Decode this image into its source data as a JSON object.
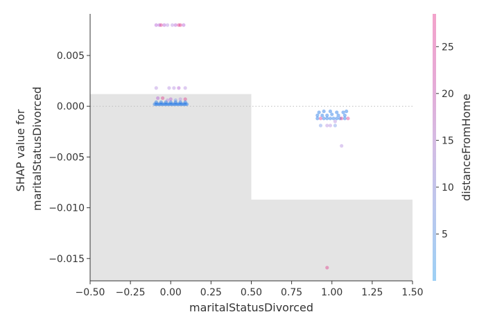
{
  "chart_data": {
    "type": "scatter",
    "xlabel": "maritalStatusDivorced",
    "ylabel_lines": [
      "SHAP value for",
      "maritalStatusDivorced"
    ],
    "xlim": [
      -0.5,
      1.5
    ],
    "ylim": [
      -0.0172,
      0.0091
    ],
    "x_ticks": [
      -0.5,
      -0.25,
      0.0,
      0.25,
      0.5,
      0.75,
      1.0,
      1.25,
      1.5
    ],
    "x_tick_labels": [
      "−0.50",
      "−0.25",
      "0.00",
      "0.25",
      "0.50",
      "0.75",
      "1.00",
      "1.25",
      "1.50"
    ],
    "y_ticks": [
      0.005,
      0.0,
      -0.005,
      -0.01,
      -0.015
    ],
    "y_tick_labels": [
      "0.005",
      "0.000",
      "−0.005",
      "−0.010",
      "−0.015"
    ],
    "zero_line": true,
    "histogram": {
      "color": "#e4e4e4",
      "bins": [
        {
          "x0": -0.5,
          "x1": 0.5,
          "top": 0.0012
        },
        {
          "x0": 0.5,
          "x1": 1.5,
          "top": -0.0092
        }
      ]
    },
    "colorbar": {
      "label": "distanceFromHome",
      "range": [
        0,
        28.5
      ],
      "ticks": [
        5,
        10,
        15,
        20,
        25
      ],
      "tick_labels": [
        "5",
        "10",
        "15",
        "20",
        "25"
      ],
      "colors": [
        "#9dd0f5",
        "#b9c8ee",
        "#d3bde4",
        "#e6aad6",
        "#f3a3cb"
      ]
    },
    "points": [
      {
        "x": -0.09,
        "y": 0.008,
        "c": 18
      },
      {
        "x": -0.07,
        "y": 0.008,
        "c": 18
      },
      {
        "x": -0.06,
        "y": 0.008,
        "c": 22
      },
      {
        "x": -0.04,
        "y": 0.008,
        "c": 18
      },
      {
        "x": -0.02,
        "y": 0.008,
        "c": 12
      },
      {
        "x": 0.01,
        "y": 0.008,
        "c": 14
      },
      {
        "x": 0.03,
        "y": 0.008,
        "c": 18
      },
      {
        "x": 0.05,
        "y": 0.008,
        "c": 22
      },
      {
        "x": 0.06,
        "y": 0.008,
        "c": 20
      },
      {
        "x": 0.08,
        "y": 0.008,
        "c": 16
      },
      {
        "x": -0.09,
        "y": 0.0018,
        "c": 14
      },
      {
        "x": -0.01,
        "y": 0.0018,
        "c": 14
      },
      {
        "x": 0.02,
        "y": 0.0018,
        "c": 12
      },
      {
        "x": 0.05,
        "y": 0.0018,
        "c": 16
      },
      {
        "x": 0.09,
        "y": 0.0018,
        "c": 14
      },
      {
        "x": -0.08,
        "y": 0.0008,
        "c": 16
      },
      {
        "x": -0.05,
        "y": 0.0008,
        "c": 22
      },
      {
        "x": -0.02,
        "y": 0.0006,
        "c": 10
      },
      {
        "x": 0.0,
        "y": 0.0007,
        "c": 18
      },
      {
        "x": 0.03,
        "y": 0.0006,
        "c": 8
      },
      {
        "x": 0.06,
        "y": 0.0007,
        "c": 12
      },
      {
        "x": 0.09,
        "y": 0.0007,
        "c": 20
      },
      {
        "x": -0.09,
        "y": 0.0004,
        "c": 3
      },
      {
        "x": -0.06,
        "y": 0.0004,
        "c": 3
      },
      {
        "x": -0.03,
        "y": 0.0004,
        "c": 4
      },
      {
        "x": 0.0,
        "y": 0.0004,
        "c": 3
      },
      {
        "x": 0.03,
        "y": 0.0004,
        "c": 3
      },
      {
        "x": 0.06,
        "y": 0.0004,
        "c": 4
      },
      {
        "x": 0.09,
        "y": 0.0004,
        "c": 3
      },
      {
        "x": -0.1,
        "y": 0.0002,
        "c": 2
      },
      {
        "x": -0.09,
        "y": 0.0002,
        "c": 2
      },
      {
        "x": -0.08,
        "y": 0.0002,
        "c": 2
      },
      {
        "x": -0.07,
        "y": 0.0002,
        "c": 2
      },
      {
        "x": -0.06,
        "y": 0.0002,
        "c": 2
      },
      {
        "x": -0.05,
        "y": 0.0002,
        "c": 2
      },
      {
        "x": -0.04,
        "y": 0.0002,
        "c": 2
      },
      {
        "x": -0.03,
        "y": 0.0002,
        "c": 2
      },
      {
        "x": -0.02,
        "y": 0.0002,
        "c": 2
      },
      {
        "x": -0.01,
        "y": 0.0002,
        "c": 2
      },
      {
        "x": 0.0,
        "y": 0.0002,
        "c": 2
      },
      {
        "x": 0.01,
        "y": 0.0002,
        "c": 2
      },
      {
        "x": 0.02,
        "y": 0.0002,
        "c": 2
      },
      {
        "x": 0.03,
        "y": 0.0002,
        "c": 2
      },
      {
        "x": 0.04,
        "y": 0.0002,
        "c": 2
      },
      {
        "x": 0.05,
        "y": 0.0002,
        "c": 2
      },
      {
        "x": 0.06,
        "y": 0.0002,
        "c": 2
      },
      {
        "x": 0.07,
        "y": 0.0002,
        "c": 2
      },
      {
        "x": 0.08,
        "y": 0.0002,
        "c": 2
      },
      {
        "x": 0.09,
        "y": 0.0002,
        "c": 2
      },
      {
        "x": 0.1,
        "y": 0.0002,
        "c": 2
      },
      {
        "x": 0.92,
        "y": -0.0006,
        "c": 3
      },
      {
        "x": 0.95,
        "y": -0.0005,
        "c": 4
      },
      {
        "x": 0.99,
        "y": -0.0005,
        "c": 3
      },
      {
        "x": 1.03,
        "y": -0.0006,
        "c": 4
      },
      {
        "x": 1.07,
        "y": -0.0006,
        "c": 3
      },
      {
        "x": 1.09,
        "y": -0.0005,
        "c": 3
      },
      {
        "x": 0.91,
        "y": -0.0009,
        "c": 4
      },
      {
        "x": 0.94,
        "y": -0.0009,
        "c": 3
      },
      {
        "x": 0.97,
        "y": -0.0009,
        "c": 4
      },
      {
        "x": 1.0,
        "y": -0.0008,
        "c": 3
      },
      {
        "x": 1.04,
        "y": -0.0009,
        "c": 4
      },
      {
        "x": 1.08,
        "y": -0.0009,
        "c": 3
      },
      {
        "x": 0.91,
        "y": -0.0012,
        "c": 3
      },
      {
        "x": 0.93,
        "y": -0.0012,
        "c": 22
      },
      {
        "x": 0.95,
        "y": -0.0012,
        "c": 4
      },
      {
        "x": 0.97,
        "y": -0.0012,
        "c": 3
      },
      {
        "x": 0.99,
        "y": -0.0012,
        "c": 3
      },
      {
        "x": 1.01,
        "y": -0.0012,
        "c": 4
      },
      {
        "x": 1.03,
        "y": -0.0012,
        "c": 3
      },
      {
        "x": 1.05,
        "y": -0.0012,
        "c": 3
      },
      {
        "x": 1.06,
        "y": -0.0012,
        "c": 24
      },
      {
        "x": 1.08,
        "y": -0.0012,
        "c": 3
      },
      {
        "x": 1.1,
        "y": -0.0012,
        "c": 20
      },
      {
        "x": 1.02,
        "y": -0.0015,
        "c": 10
      },
      {
        "x": 0.93,
        "y": -0.0019,
        "c": 6
      },
      {
        "x": 0.97,
        "y": -0.0019,
        "c": 10
      },
      {
        "x": 0.99,
        "y": -0.0019,
        "c": 12
      },
      {
        "x": 1.02,
        "y": -0.0019,
        "c": 8
      },
      {
        "x": 1.06,
        "y": -0.0039,
        "c": 12
      },
      {
        "x": 0.97,
        "y": -0.0159,
        "c": 24
      }
    ]
  }
}
